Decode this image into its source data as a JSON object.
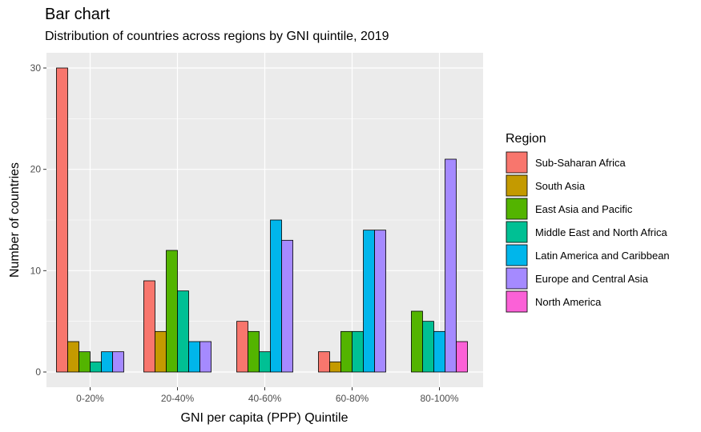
{
  "chart_data": {
    "type": "bar",
    "title": "Bar chart",
    "subtitle": "Distribution of countries across regions by GNI quintile, 2019",
    "xlabel": "GNI per capita (PPP) Quintile",
    "ylabel": "Number of countries",
    "categories": [
      "0-20%",
      "20-40%",
      "40-60%",
      "60-80%",
      "80-100%"
    ],
    "ylim": [
      -1.5,
      31.5
    ],
    "yticks": [
      0,
      10,
      20,
      30
    ],
    "grid": true,
    "legend_title": "Region",
    "legend_position": "right",
    "series": [
      {
        "name": "Sub-Saharan Africa",
        "color": "#F8766D",
        "values": [
          30,
          9,
          5,
          2,
          null
        ]
      },
      {
        "name": "South Asia",
        "color": "#C49A00",
        "values": [
          3,
          4,
          null,
          1,
          null
        ]
      },
      {
        "name": "East Asia and Pacific",
        "color": "#53B400",
        "values": [
          2,
          12,
          4,
          4,
          6
        ]
      },
      {
        "name": "Middle East and North Africa",
        "color": "#00C094",
        "values": [
          1,
          8,
          2,
          4,
          5
        ]
      },
      {
        "name": "Latin America and Caribbean",
        "color": "#00B6EB",
        "values": [
          2,
          3,
          15,
          14,
          4
        ]
      },
      {
        "name": "Europe and Central Asia",
        "color": "#A58AFF",
        "values": [
          2,
          3,
          13,
          14,
          21
        ]
      },
      {
        "name": "North America",
        "color": "#FB61D7",
        "values": [
          null,
          null,
          null,
          null,
          3
        ]
      }
    ]
  }
}
